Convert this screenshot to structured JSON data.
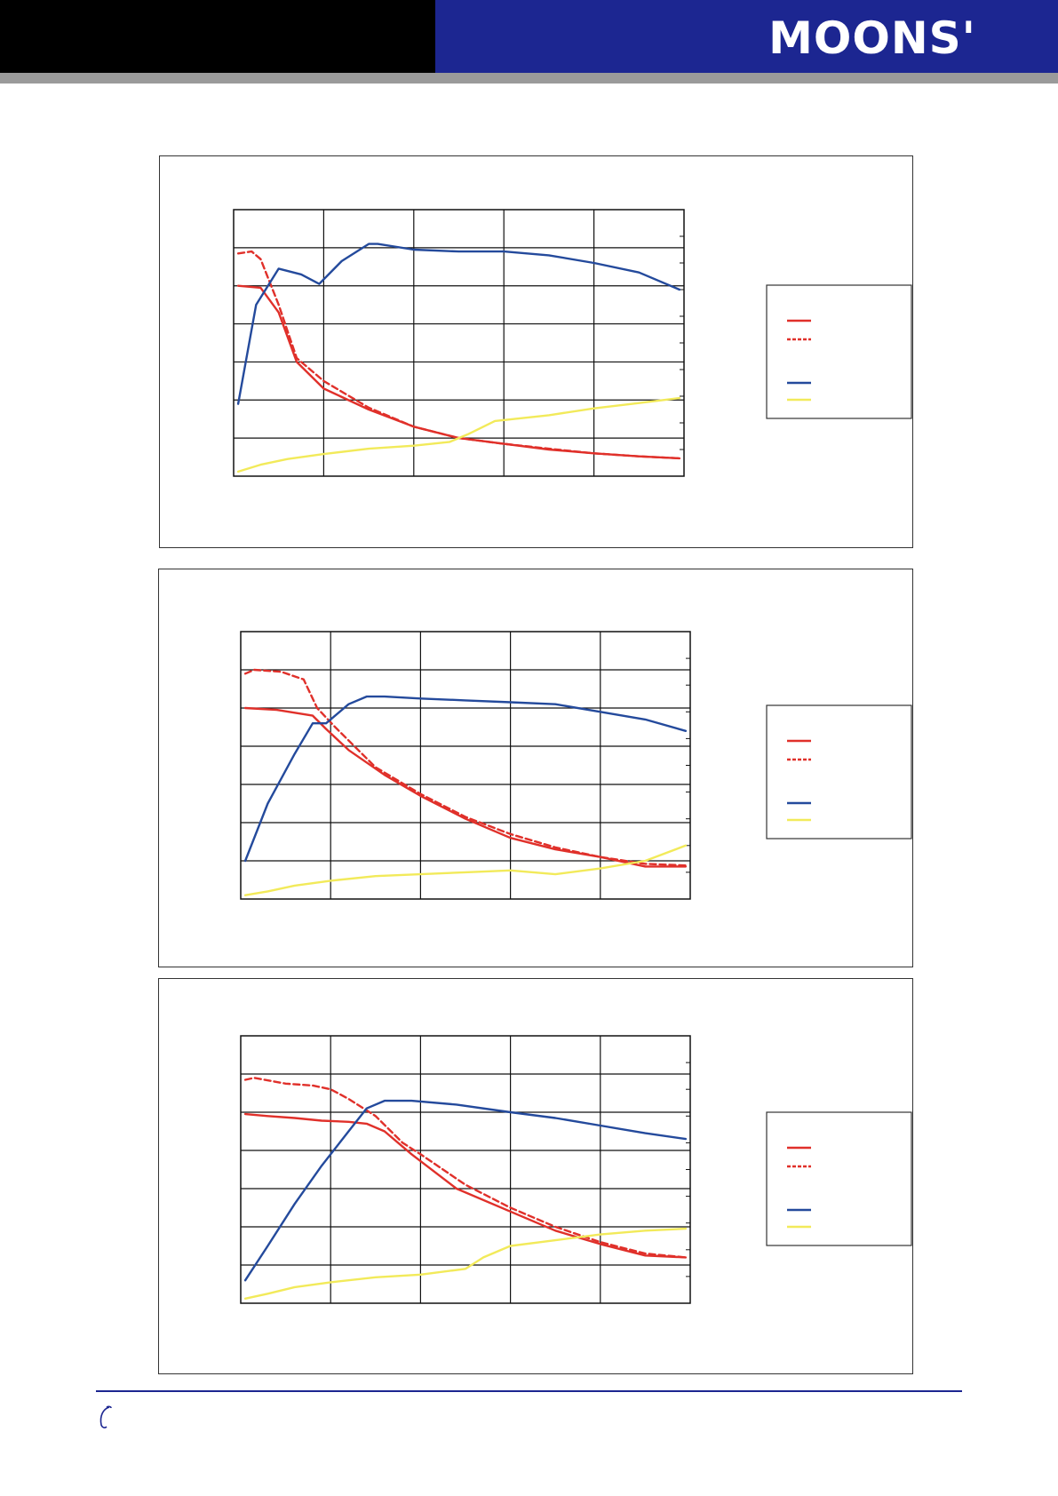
{
  "header": {
    "brand": "MOONS'"
  },
  "colors": {
    "header_left": "#000000",
    "header_right": "#1c2691",
    "header_rule": "#9a9a9a",
    "series_red": "#e0302a",
    "series_blue": "#244a9c",
    "series_yellow": "#f2ea5a",
    "grid": "#111111"
  },
  "footer": {
    "icon": "phone-icon"
  },
  "chart_data": [
    {
      "type": "line",
      "xlim": [
        0,
        5
      ],
      "ylim": [
        0,
        7
      ],
      "grid": true,
      "legend_placement": "right",
      "series": [
        {
          "style": "solid-red",
          "x": [
            0.05,
            0.3,
            0.5,
            0.7,
            1.0,
            1.5,
            2.0,
            2.5,
            3.0,
            3.5,
            4.0,
            4.5,
            4.95
          ],
          "y": [
            5.0,
            4.95,
            4.3,
            3.0,
            2.3,
            1.75,
            1.3,
            1.0,
            0.85,
            0.7,
            0.6,
            0.52,
            0.47
          ]
        },
        {
          "style": "dashed-red",
          "x": [
            0.05,
            0.2,
            0.3,
            0.5,
            0.7,
            1.0,
            1.5,
            2.0,
            2.5,
            3.0,
            3.5,
            4.0,
            4.5,
            4.95
          ],
          "y": [
            5.85,
            5.9,
            5.7,
            4.5,
            3.1,
            2.5,
            1.8,
            1.3,
            1.0,
            0.85,
            0.72,
            0.6,
            0.52,
            0.47
          ]
        },
        {
          "style": "solid-blue",
          "x": [
            0.05,
            0.25,
            0.5,
            0.75,
            0.95,
            1.2,
            1.5,
            1.6,
            2.0,
            2.5,
            3.0,
            3.5,
            4.0,
            4.5,
            4.95
          ],
          "y": [
            1.9,
            4.5,
            5.45,
            5.3,
            5.05,
            5.65,
            6.1,
            6.1,
            5.95,
            5.9,
            5.9,
            5.8,
            5.6,
            5.35,
            4.9
          ]
        },
        {
          "style": "solid-yellow",
          "x": [
            0.05,
            0.3,
            0.6,
            1.0,
            1.5,
            2.0,
            2.4,
            2.6,
            2.9,
            3.5,
            4.0,
            4.5,
            4.95
          ],
          "y": [
            0.12,
            0.3,
            0.45,
            0.58,
            0.72,
            0.8,
            0.9,
            1.1,
            1.45,
            1.6,
            1.78,
            1.92,
            2.05
          ]
        }
      ],
      "legend_styles": [
        "solid-red",
        "dashed-red",
        "solid-blue",
        "solid-yellow"
      ]
    },
    {
      "type": "line",
      "xlim": [
        0,
        5
      ],
      "ylim": [
        0,
        7
      ],
      "grid": true,
      "legend_placement": "right",
      "series": [
        {
          "style": "solid-red",
          "x": [
            0.05,
            0.4,
            0.8,
            0.95,
            1.2,
            1.6,
            2.0,
            2.5,
            3.0,
            3.5,
            4.0,
            4.5,
            4.95
          ],
          "y": [
            5.0,
            4.95,
            4.8,
            4.45,
            3.9,
            3.25,
            2.7,
            2.1,
            1.6,
            1.3,
            1.1,
            0.85,
            0.85
          ]
        },
        {
          "style": "dashed-red",
          "x": [
            0.05,
            0.15,
            0.45,
            0.7,
            0.85,
            1.05,
            1.5,
            2.0,
            2.5,
            3.0,
            3.5,
            4.0,
            4.5,
            4.95
          ],
          "y": [
            5.9,
            6.0,
            5.95,
            5.75,
            5.0,
            4.5,
            3.45,
            2.75,
            2.15,
            1.7,
            1.35,
            1.1,
            0.92,
            0.88
          ]
        },
        {
          "style": "solid-blue",
          "x": [
            0.05,
            0.3,
            0.6,
            0.8,
            0.95,
            1.2,
            1.4,
            1.6,
            2.0,
            2.5,
            3.0,
            3.5,
            4.0,
            4.5,
            4.95
          ],
          "y": [
            1.0,
            2.5,
            3.8,
            4.6,
            4.6,
            5.1,
            5.3,
            5.3,
            5.25,
            5.2,
            5.15,
            5.1,
            4.9,
            4.7,
            4.4
          ]
        },
        {
          "style": "solid-yellow",
          "x": [
            0.05,
            0.3,
            0.6,
            1.0,
            1.5,
            2.0,
            2.5,
            3.0,
            3.5,
            4.0,
            4.5,
            4.95
          ],
          "y": [
            0.1,
            0.2,
            0.35,
            0.48,
            0.6,
            0.65,
            0.7,
            0.75,
            0.65,
            0.8,
            1.0,
            1.4
          ]
        }
      ],
      "legend_styles": [
        "solid-red",
        "dashed-red",
        "solid-blue",
        "solid-yellow"
      ]
    },
    {
      "type": "line",
      "xlim": [
        0,
        5
      ],
      "ylim": [
        0,
        7
      ],
      "grid": true,
      "legend_placement": "right",
      "series": [
        {
          "style": "solid-red",
          "x": [
            0.05,
            0.3,
            0.6,
            0.9,
            1.2,
            1.4,
            1.6,
            1.9,
            2.4,
            3.0,
            3.5,
            4.0,
            4.5,
            4.95
          ],
          "y": [
            4.95,
            4.9,
            4.85,
            4.78,
            4.75,
            4.7,
            4.5,
            3.9,
            3.0,
            2.4,
            1.9,
            1.55,
            1.25,
            1.2
          ]
        },
        {
          "style": "dashed-red",
          "x": [
            0.05,
            0.15,
            0.5,
            0.8,
            1.0,
            1.2,
            1.5,
            1.8,
            2.0,
            2.5,
            3.0,
            3.5,
            4.0,
            4.5,
            4.95
          ],
          "y": [
            5.85,
            5.9,
            5.75,
            5.7,
            5.6,
            5.35,
            4.9,
            4.2,
            3.9,
            3.1,
            2.5,
            2.0,
            1.6,
            1.3,
            1.2
          ]
        },
        {
          "style": "solid-blue",
          "x": [
            0.05,
            0.3,
            0.6,
            0.9,
            1.2,
            1.4,
            1.6,
            1.9,
            2.4,
            3.0,
            3.5,
            4.0,
            4.5,
            4.95
          ],
          "y": [
            0.6,
            1.5,
            2.6,
            3.6,
            4.5,
            5.1,
            5.3,
            5.3,
            5.2,
            5.0,
            4.85,
            4.65,
            4.45,
            4.3
          ]
        },
        {
          "style": "solid-yellow",
          "x": [
            0.05,
            0.3,
            0.6,
            1.0,
            1.5,
            2.0,
            2.5,
            2.7,
            3.0,
            3.5,
            4.0,
            4.5,
            4.95
          ],
          "y": [
            0.12,
            0.25,
            0.42,
            0.55,
            0.68,
            0.75,
            0.9,
            1.2,
            1.5,
            1.65,
            1.8,
            1.9,
            1.95
          ]
        }
      ],
      "legend_styles": [
        "solid-red",
        "dashed-red",
        "solid-blue",
        "solid-yellow"
      ]
    }
  ]
}
